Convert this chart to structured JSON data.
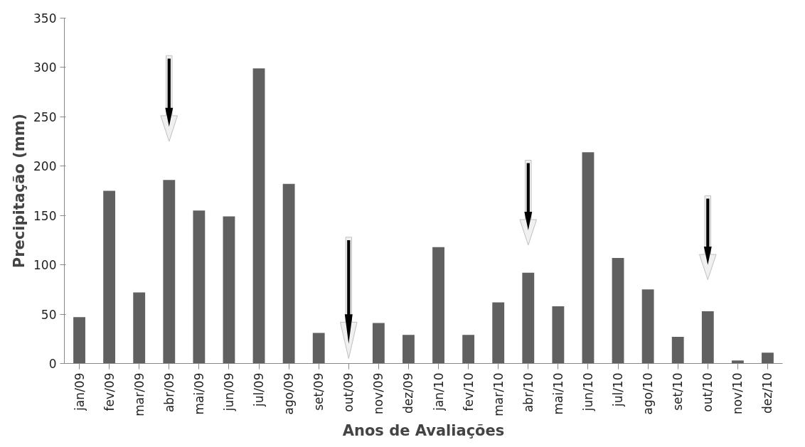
{
  "chart_data": {
    "type": "bar",
    "xlabel": "Anos de Avaliações",
    "ylabel": "Precipitação (mm)",
    "categories": [
      "jan/09",
      "fev/09",
      "mar/09",
      "abr/09",
      "mai/09",
      "jun/09",
      "jul/09",
      "ago/09",
      "set/09",
      "out/09",
      "nov/09",
      "dez/09",
      "jan/10",
      "fev/10",
      "mar/10",
      "abr/10",
      "mai/10",
      "jun/10",
      "jul/10",
      "ago/10",
      "set/10",
      "out/10",
      "nov/10",
      "dez/10"
    ],
    "values": [
      47,
      175,
      72,
      186,
      155,
      149,
      299,
      182,
      31,
      0,
      41,
      29,
      118,
      29,
      62,
      92,
      58,
      214,
      107,
      75,
      27,
      53,
      3,
      11
    ],
    "color": "#606060",
    "ylim": [
      0,
      350
    ],
    "yticks": [
      0,
      50,
      100,
      150,
      200,
      250,
      300,
      350
    ],
    "grid": false
  }
}
